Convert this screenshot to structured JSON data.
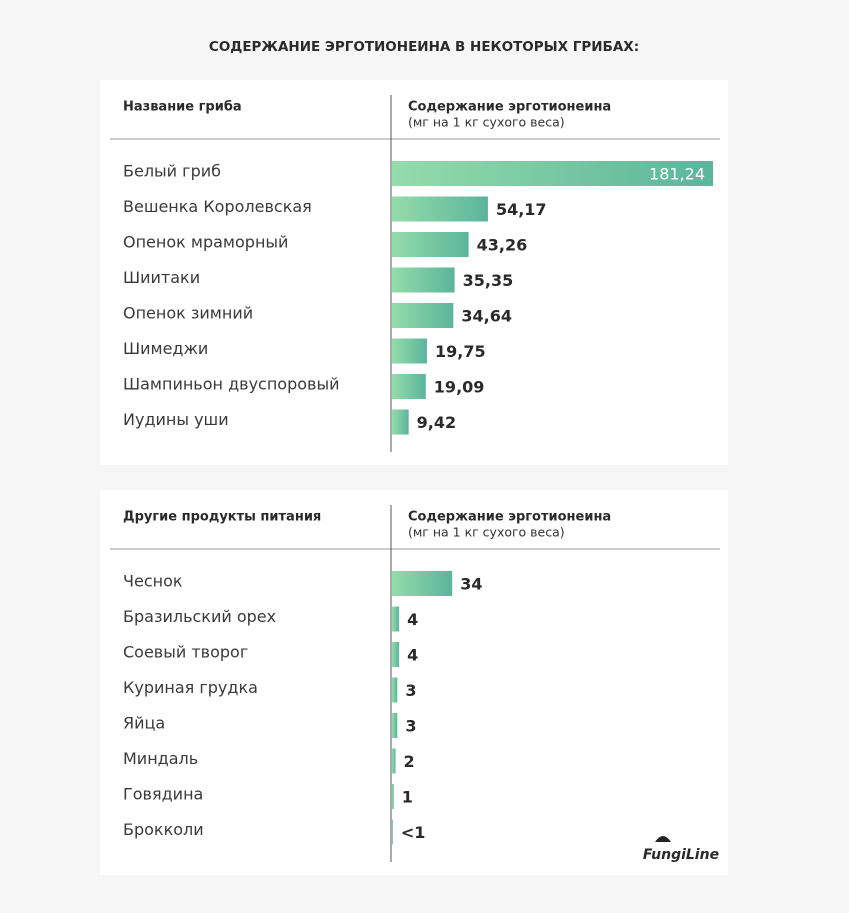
{
  "title": "СОДЕРЖАНИЕ ЭРГОТИОНЕИНА В НЕКОТОРЫХ ГРИБАХ:",
  "logo": "FungiLine",
  "chart_data": [
    {
      "type": "bar",
      "orientation": "horizontal",
      "color": "#5bb59c",
      "category_header": "Название гриба",
      "value_header": "Содержание эрготионеина",
      "value_unit": "(мг на 1 кг сухого веса)",
      "categories": [
        "Белый гриб",
        "Вешенка Королевская",
        "Опенок мраморный",
        "Шиитаки",
        "Опенок зимний",
        "Шимеджи",
        "Шампиньон двуспоровый",
        "Иудины уши"
      ],
      "values": [
        181.24,
        54.17,
        43.26,
        35.35,
        34.64,
        19.75,
        19.09,
        9.42
      ],
      "value_labels": [
        "181,24",
        "54,17",
        "43,26",
        "35,35",
        "34,64",
        "19,75",
        "19,09",
        "9,42"
      ]
    },
    {
      "type": "bar",
      "orientation": "horizontal",
      "color": "#5bb59c",
      "category_header": "Другие продукты питания",
      "value_header": "Содержание эрготионеина",
      "value_unit": "(мг на 1 кг сухого веса)",
      "categories": [
        "Чеснок",
        "Бразильский орех",
        "Соевый творог",
        "Куриная грудка",
        "Яйца",
        "Миндаль",
        "Говядина",
        "Брокколи"
      ],
      "values": [
        34,
        4,
        4,
        3,
        3,
        2,
        1,
        0.5
      ],
      "value_labels": [
        "34",
        "4",
        "4",
        "3",
        "3",
        "2",
        "1",
        "<1"
      ]
    }
  ]
}
